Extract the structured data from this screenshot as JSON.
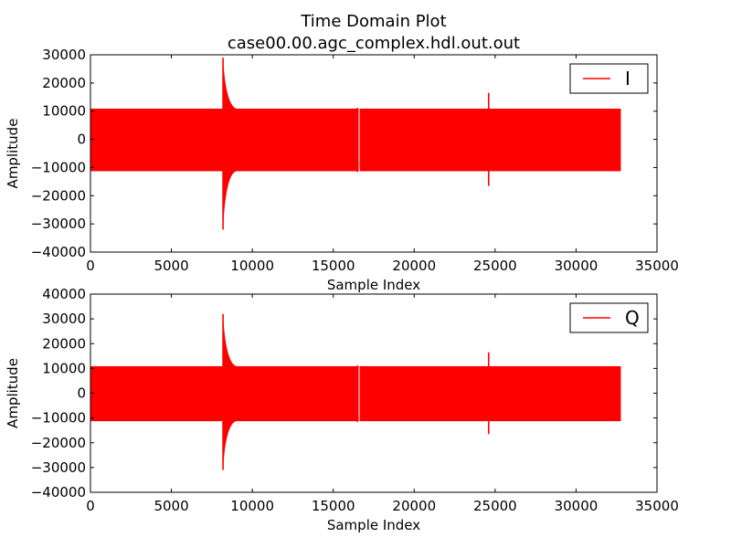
{
  "chart_data": {
    "type": "line",
    "title": "Time Domain Plot",
    "subtitle": "case00.00.agc_complex.hdl.out.out",
    "line_color": "#ff0000",
    "grid": false,
    "subplots": [
      {
        "ylabel": "Amplitude",
        "xlabel": "Sample Index",
        "xlim": [
          0,
          35000
        ],
        "ylim": [
          -40000,
          30000
        ],
        "xticks": [
          0,
          5000,
          10000,
          15000,
          20000,
          25000,
          30000,
          35000
        ],
        "yticks": [
          -40000,
          -30000,
          -20000,
          -10000,
          0,
          10000,
          20000,
          30000
        ],
        "legend": {
          "label": "I",
          "placement": "top-right"
        },
        "series": [
          {
            "name": "I",
            "sample_count": 32768,
            "envelope_max": 10900,
            "envelope_min": -11300,
            "spikes": [
              {
                "x": 8190,
                "max": 29000,
                "min": -32000
              },
              {
                "x": 8400,
                "max": 13000,
                "min": -12500
              },
              {
                "x": 16500,
                "max": 11200,
                "min": -11600
              },
              {
                "x": 24600,
                "max": 16500,
                "min": -16500
              }
            ]
          }
        ]
      },
      {
        "ylabel": "Amplitude",
        "xlabel": "Sample Index",
        "xlim": [
          0,
          35000
        ],
        "ylim": [
          -40000,
          40000
        ],
        "xticks": [
          0,
          5000,
          10000,
          15000,
          20000,
          25000,
          30000,
          35000
        ],
        "yticks": [
          -40000,
          -30000,
          -20000,
          -10000,
          0,
          10000,
          20000,
          30000,
          40000
        ],
        "legend": {
          "label": "Q",
          "placement": "top-right"
        },
        "series": [
          {
            "name": "Q",
            "sample_count": 32768,
            "envelope_max": 10900,
            "envelope_min": -11300,
            "spikes": [
              {
                "x": 8190,
                "max": 32000,
                "min": -31000
              },
              {
                "x": 8400,
                "max": 13000,
                "min": -12500
              },
              {
                "x": 16500,
                "max": 11200,
                "min": -11600
              },
              {
                "x": 24600,
                "max": 16500,
                "min": -16500
              }
            ]
          }
        ]
      }
    ]
  }
}
